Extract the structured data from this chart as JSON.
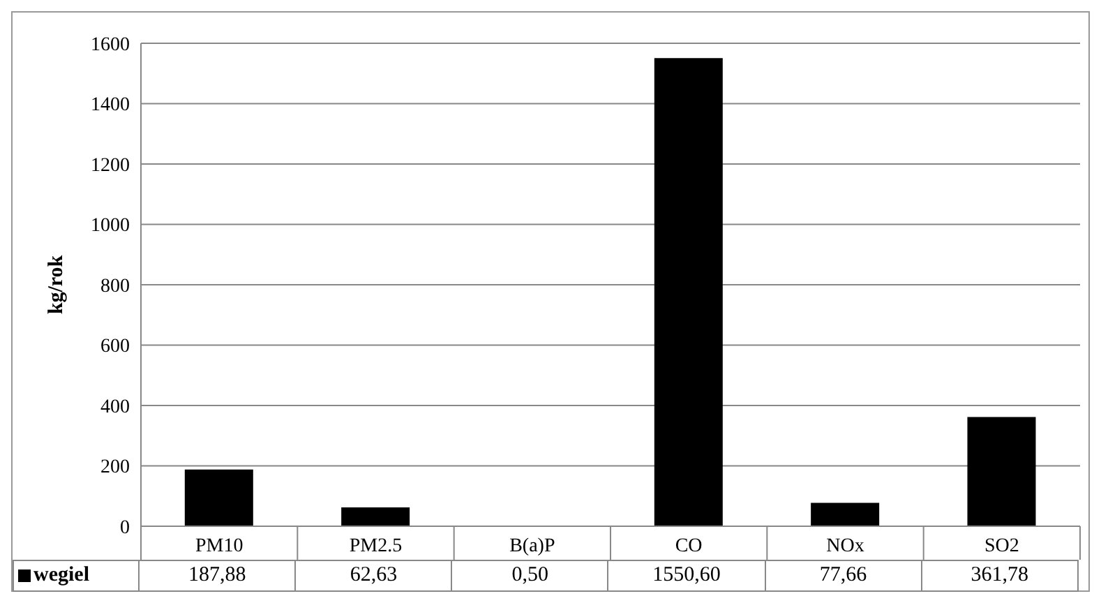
{
  "chart_data": {
    "type": "bar",
    "ylabel": "kg/rok",
    "categories": [
      "PM10",
      "PM2.5",
      "B(a)P",
      "CO",
      "NOx",
      "SO2"
    ],
    "series": [
      {
        "name": "wegiel",
        "color": "#000000",
        "values": [
          187.88,
          62.63,
          0.5,
          1550.6,
          77.66,
          361.78
        ],
        "value_labels": [
          "187,88",
          "62,63",
          "0,50",
          "1550,60",
          "77,66",
          "361,78"
        ]
      }
    ],
    "ylim": [
      0,
      1600
    ],
    "yticks": [
      0,
      200,
      400,
      600,
      800,
      1000,
      1200,
      1400,
      1600
    ],
    "grid": "y",
    "legend": "bottom left"
  }
}
